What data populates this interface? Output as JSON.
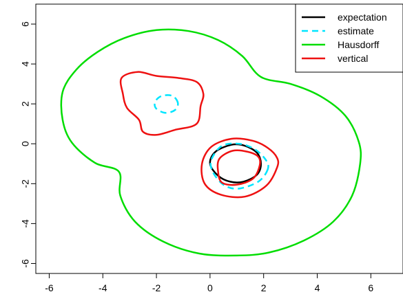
{
  "chart_data": {
    "type": "line",
    "title": "",
    "xlabel": "",
    "ylabel": "",
    "xlim": [
      -6.5,
      7.2
    ],
    "ylim": [
      -6.5,
      7.0
    ],
    "xticks": [
      -6,
      -4,
      -2,
      0,
      2,
      4,
      6
    ],
    "yticks": [
      -6,
      -4,
      -2,
      0,
      2,
      4,
      6
    ],
    "grid": false,
    "legend": {
      "position": "top-right",
      "entries": [
        {
          "label": "expectation",
          "color": "#000000",
          "style": "solid"
        },
        {
          "label": "estimate",
          "color": "#00e5ff",
          "style": "dashed"
        },
        {
          "label": "Hausdorff",
          "color": "#00dd00",
          "style": "solid"
        },
        {
          "label": "vertical",
          "color": "#ee1111",
          "style": "solid"
        }
      ]
    },
    "series": [
      {
        "name": "expectation",
        "color": "#000000",
        "style": "solid",
        "closed": true,
        "points": [
          [
            1.9,
            -1.0
          ],
          [
            1.75,
            -1.55
          ],
          [
            1.25,
            -1.9
          ],
          [
            0.75,
            -1.9
          ],
          [
            0.3,
            -1.6
          ],
          [
            0.0,
            -1.0
          ],
          [
            0.2,
            -0.4
          ],
          [
            0.8,
            -0.05
          ],
          [
            1.3,
            -0.1
          ],
          [
            1.75,
            -0.45
          ]
        ]
      },
      {
        "name": "estimate",
        "color": "#00e5ff",
        "style": "dashed",
        "closed": true,
        "points": [
          [
            2.15,
            -1.3
          ],
          [
            1.8,
            -1.9
          ],
          [
            1.05,
            -2.25
          ],
          [
            0.5,
            -2.05
          ],
          [
            0.1,
            -1.4
          ],
          [
            0.05,
            -0.8
          ],
          [
            0.45,
            -0.1
          ],
          [
            1.1,
            0.0
          ],
          [
            1.7,
            -0.3
          ],
          [
            2.1,
            -0.85
          ]
        ]
      },
      {
        "name": "estimate",
        "color": "#00e5ff",
        "style": "dashed",
        "closed": true,
        "points": [
          [
            -1.2,
            2.05
          ],
          [
            -1.4,
            2.4
          ],
          [
            -1.8,
            2.4
          ],
          [
            -2.05,
            2.1
          ],
          [
            -2.0,
            1.75
          ],
          [
            -1.65,
            1.55
          ],
          [
            -1.3,
            1.7
          ]
        ]
      },
      {
        "name": "Hausdorff",
        "color": "#00dd00",
        "style": "solid",
        "closed": true,
        "points": [
          [
            1.9,
            3.35
          ],
          [
            3.0,
            3.0
          ],
          [
            4.1,
            2.4
          ],
          [
            5.05,
            1.4
          ],
          [
            5.55,
            0.1
          ],
          [
            5.6,
            -1.0
          ],
          [
            5.3,
            -2.6
          ],
          [
            4.6,
            -3.9
          ],
          [
            3.5,
            -4.85
          ],
          [
            2.2,
            -5.45
          ],
          [
            1.0,
            -5.6
          ],
          [
            -0.4,
            -5.5
          ],
          [
            -1.75,
            -4.9
          ],
          [
            -2.8,
            -3.9
          ],
          [
            -3.35,
            -2.6
          ],
          [
            -3.4,
            -1.4
          ],
          [
            -4.3,
            -0.95
          ],
          [
            -5.15,
            0.05
          ],
          [
            -5.5,
            1.2
          ],
          [
            -5.5,
            2.6
          ],
          [
            -5.0,
            3.7
          ],
          [
            -4.2,
            4.6
          ],
          [
            -3.2,
            5.3
          ],
          [
            -2.0,
            5.7
          ],
          [
            -0.8,
            5.65
          ],
          [
            0.3,
            5.2
          ],
          [
            1.2,
            4.4
          ]
        ]
      },
      {
        "name": "vertical",
        "color": "#ee1111",
        "style": "solid",
        "closed": true,
        "points": [
          [
            2.5,
            -1.2
          ],
          [
            2.1,
            -2.1
          ],
          [
            1.3,
            -2.65
          ],
          [
            0.4,
            -2.55
          ],
          [
            -0.2,
            -2.0
          ],
          [
            -0.3,
            -1.0
          ],
          [
            0.05,
            -0.15
          ],
          [
            0.8,
            0.25
          ],
          [
            1.6,
            0.15
          ],
          [
            2.15,
            -0.2
          ],
          [
            2.5,
            -0.7
          ]
        ]
      },
      {
        "name": "vertical",
        "color": "#ee1111",
        "style": "solid",
        "closed": true,
        "points": [
          [
            1.85,
            -1.1
          ],
          [
            1.6,
            -1.75
          ],
          [
            1.0,
            -2.05
          ],
          [
            0.45,
            -1.95
          ],
          [
            0.3,
            -1.4
          ],
          [
            0.35,
            -0.75
          ],
          [
            0.85,
            -0.35
          ],
          [
            1.4,
            -0.4
          ],
          [
            1.8,
            -0.65
          ]
        ]
      },
      {
        "name": "vertical",
        "color": "#ee1111",
        "style": "solid",
        "closed": true,
        "points": [
          [
            -0.35,
            1.9
          ],
          [
            -0.5,
            1.0
          ],
          [
            -1.3,
            0.7
          ],
          [
            -2.0,
            0.45
          ],
          [
            -2.5,
            0.6
          ],
          [
            -2.65,
            1.2
          ],
          [
            -3.1,
            1.8
          ],
          [
            -3.25,
            2.5
          ],
          [
            -3.3,
            3.3
          ],
          [
            -2.7,
            3.6
          ],
          [
            -2.0,
            3.4
          ],
          [
            -1.2,
            3.3
          ],
          [
            -0.5,
            3.1
          ],
          [
            -0.25,
            2.5
          ]
        ]
      }
    ]
  }
}
